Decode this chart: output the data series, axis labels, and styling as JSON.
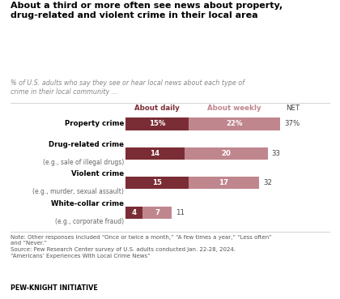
{
  "title": "About a third or more often see news about property,\ndrug-related and violent crime in their local area",
  "subtitle": "% of U.S. adults who say they see or hear local news about each type of\ncrime in their local community ...",
  "category_labels": [
    "Property crime",
    "Drug-related crime",
    "Violent crime",
    "White-collar crime"
  ],
  "category_sublabels": [
    "",
    "(e.g., sale of illegal drugs)",
    "(e.g., murder, sexual assault)",
    "(e.g., corporate fraud)"
  ],
  "daily_values": [
    15,
    14,
    15,
    4
  ],
  "weekly_values": [
    22,
    20,
    17,
    7
  ],
  "daily_labels": [
    "15%",
    "14",
    "15",
    "4"
  ],
  "weekly_labels": [
    "22%",
    "20",
    "17",
    "7"
  ],
  "net_labels": [
    "37%",
    "33",
    "32",
    "11"
  ],
  "color_daily": "#7B2D35",
  "color_weekly": "#C0868E",
  "bar_height": 0.42,
  "note_line1": "Note: Other responses included “Once or twice a month,” “A few times a year,” “Less often”",
  "note_line2": "and “Never.”",
  "note_line3": "Source: Pew Research Center survey of U.S. adults conducted Jan. 22-28, 2024.",
  "note_line4": "“Americans’ Experiences With Local Crime News”",
  "footer": "PEW-KNIGHT INITIATIVE",
  "legend_daily": "About daily",
  "legend_weekly": "About weekly",
  "legend_net": "NET",
  "background_color": "#FFFFFF"
}
